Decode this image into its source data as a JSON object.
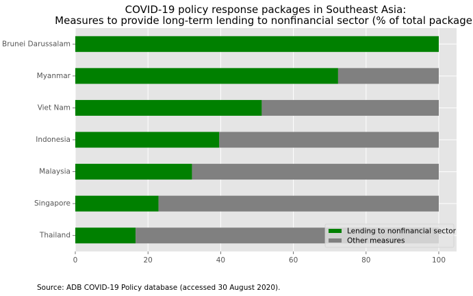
{
  "chart_data": {
    "type": "bar",
    "orientation": "horizontal",
    "stacked": true,
    "title": "COVID-19 policy response packages in Southeast Asia:",
    "subtitle": "Measures to provide long-term lending to nonfinancial sector (% of total package)",
    "xlabel": "",
    "ylabel": "",
    "xlim": [
      0,
      105
    ],
    "xticks": [
      0,
      20,
      40,
      60,
      80,
      100
    ],
    "grid": true,
    "legend_position": "bottom-right",
    "categories": [
      "Brunei Darussalam",
      "Myanmar",
      "Viet Nam",
      "Indonesia",
      "Malaysia",
      "Singapore",
      "Thailand"
    ],
    "series": [
      {
        "name": "Lending to nonfinancial sector",
        "color": "#008000",
        "values": [
          100,
          72.3,
          51.3,
          39.6,
          32.1,
          22.9,
          16.6
        ]
      },
      {
        "name": "Other measures",
        "color": "#808080",
        "values": [
          0,
          27.7,
          48.7,
          60.4,
          67.9,
          77.1,
          83.4
        ]
      }
    ]
  },
  "source": "Source: ADB COVID-19 Policy database (accessed 30 August 2020)."
}
